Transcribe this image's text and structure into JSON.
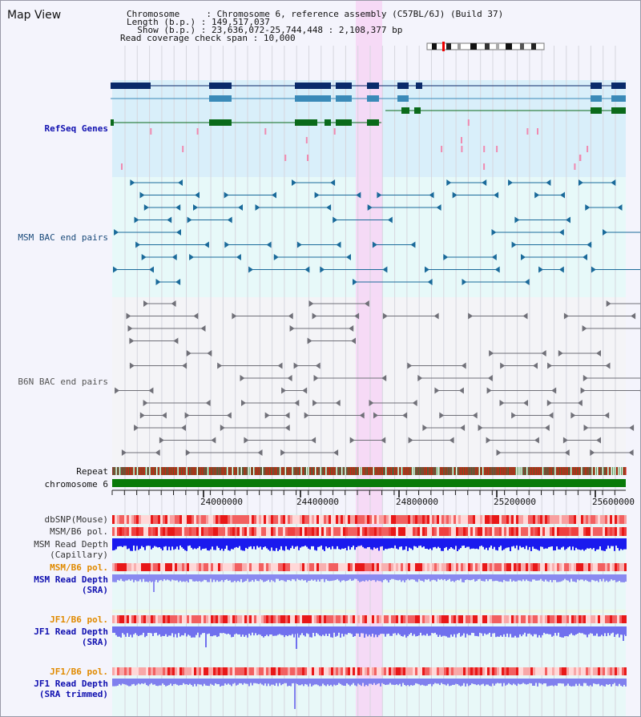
{
  "window": {
    "title": "Map View"
  },
  "info": {
    "chromosome_key": "Chromosome",
    "chromosome_val": "Chromosome 6, reference assembly (C57BL/6J) (Build 37)",
    "length_key": "Length (b.p.)",
    "length_val": "149,517,037",
    "show_key": "Show (b.p.)",
    "show_val": "23,636,072-25,744,448 : 2,108,377 bp",
    "coverage_key": "Read coverage check span",
    "coverage_val": "10,000"
  },
  "tracks": {
    "refseq": "RefSeq Genes",
    "msm_bac": "MSM BAC end pairs",
    "b6n_bac": "B6N BAC end pairs",
    "repeat": "Repeat",
    "chromosome": "chromosome 6",
    "dbsnp": "dbSNP(Mouse)",
    "msm_b6_pol_1": "MSM/B6 pol.",
    "msm_depth_cap": [
      "MSM Read Depth",
      "(Capillary)"
    ],
    "msm_b6_pol_2": "MSM/B6 pol.",
    "msm_depth_sra": [
      "MSM Read Depth",
      "(SRA)"
    ],
    "jf1_b6_pol_1": "JF1/B6 pol.",
    "jf1_depth_sra": [
      "JF1 Read Depth",
      "(SRA)"
    ],
    "jf1_b6_pol_2": "JF1/B6 pol.",
    "jf1_depth_trim": [
      "JF1 Read Depth",
      "(SRA trimmed)"
    ]
  },
  "ruler": {
    "ticks": [
      "24000000",
      "24400000",
      "24800000",
      "25200000",
      "25600000"
    ]
  },
  "colors": {
    "refseq_label": "#1010b0",
    "msm_label": "#1a4a7a",
    "b6n_label": "#555555",
    "pol_label_orange": "#e08a00",
    "depth_label_blue": "#1010b0",
    "highlight": "#f6d8f6"
  }
}
